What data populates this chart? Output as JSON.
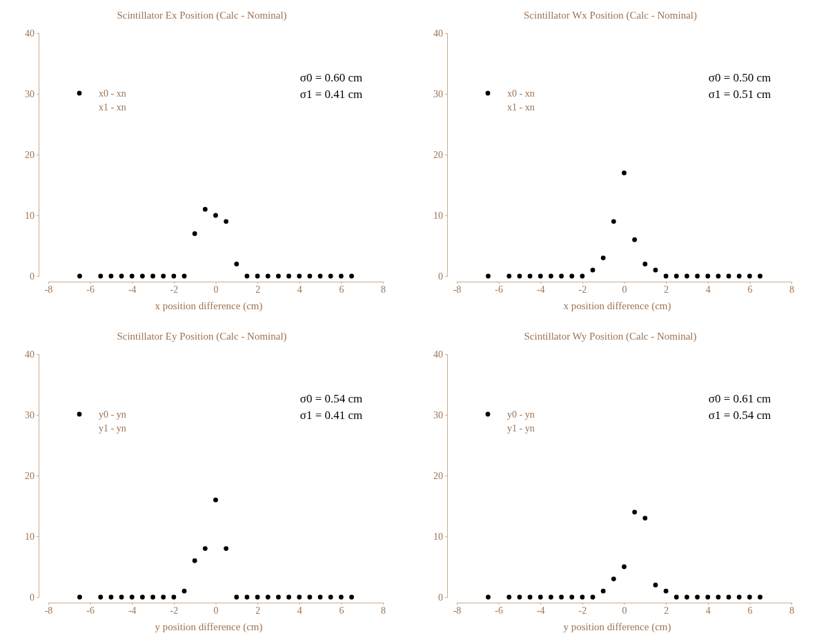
{
  "chart_data": [
    {
      "type": "scatter",
      "title": "Scintillator Ex Position (Calc - Nominal)",
      "xlabel": "x position difference (cm)",
      "xlim": [
        -8,
        8
      ],
      "xticks": [
        -8,
        -6,
        -4,
        -2,
        0,
        2,
        4,
        6,
        8
      ],
      "ylim": [
        0,
        40
      ],
      "yticks": [
        0,
        10,
        20,
        30,
        40
      ],
      "legend": "top left",
      "marker": "circle",
      "annotations": [
        "σ0 = 0.60 cm",
        "σ1 = 0.41 cm",
        "x1 - xn"
      ],
      "series": [
        {
          "name": "x0 - xn",
          "color": "#000000",
          "x": [
            -6.5,
            -5.5,
            -5,
            -4.5,
            -4,
            -3.5,
            -3,
            -2.5,
            -2,
            -1.5,
            -1,
            -0.5,
            0,
            0.5,
            1,
            1.5,
            2,
            2.5,
            3,
            3.5,
            4,
            4.5,
            5,
            5.5,
            6,
            6.5
          ],
          "values": [
            0,
            0,
            0,
            0,
            0,
            0,
            0,
            0,
            0,
            0,
            7,
            11,
            10,
            9,
            2,
            0,
            0,
            0,
            0,
            0,
            0,
            0,
            0,
            0,
            0,
            0
          ]
        }
      ]
    },
    {
      "type": "scatter",
      "title": "Scintillator Wx Position (Calc - Nominal)",
      "xlabel": "x position difference (cm)",
      "xlim": [
        -8,
        8
      ],
      "xticks": [
        -8,
        -6,
        -4,
        -2,
        0,
        2,
        4,
        6,
        8
      ],
      "ylim": [
        0,
        40
      ],
      "yticks": [
        0,
        10,
        20,
        30,
        40
      ],
      "legend": "top left",
      "marker": "circle",
      "annotations": [
        "σ0 = 0.50 cm",
        "σ1 = 0.51 cm",
        "x1 - xn"
      ],
      "series": [
        {
          "name": "x0 - xn",
          "color": "#000000",
          "x": [
            -6.5,
            -5.5,
            -5,
            -4.5,
            -4,
            -3.5,
            -3,
            -2.5,
            -2,
            -1.5,
            -1,
            -0.5,
            0,
            0.5,
            1,
            1.5,
            2,
            2.5,
            3,
            3.5,
            4,
            4.5,
            5,
            5.5,
            6,
            6.5
          ],
          "values": [
            0,
            0,
            0,
            0,
            0,
            0,
            0,
            0,
            0,
            1,
            3,
            9,
            17,
            6,
            2,
            1,
            0,
            0,
            0,
            0,
            0,
            0,
            0,
            0,
            0,
            0
          ]
        }
      ]
    },
    {
      "type": "scatter",
      "title": "Scintillator Ey Position (Calc - Nominal)",
      "xlabel": "y position difference (cm)",
      "xlim": [
        -8,
        8
      ],
      "xticks": [
        -8,
        -6,
        -4,
        -2,
        0,
        2,
        4,
        6,
        8
      ],
      "ylim": [
        0,
        40
      ],
      "yticks": [
        0,
        10,
        20,
        30,
        40
      ],
      "legend": "top left",
      "marker": "circle",
      "annotations": [
        "σ0 = 0.54 cm",
        "σ1 = 0.41 cm",
        "y1 - yn"
      ],
      "series": [
        {
          "name": "y0 - yn",
          "color": "#000000",
          "x": [
            -6.5,
            -5.5,
            -5,
            -4.5,
            -4,
            -3.5,
            -3,
            -2.5,
            -2,
            -1.5,
            -1,
            -0.5,
            0,
            0.5,
            1,
            1.5,
            2,
            2.5,
            3,
            3.5,
            4,
            4.5,
            5,
            5.5,
            6,
            6.5
          ],
          "values": [
            0,
            0,
            0,
            0,
            0,
            0,
            0,
            0,
            0,
            1,
            6,
            8,
            16,
            8,
            0,
            0,
            0,
            0,
            0,
            0,
            0,
            0,
            0,
            0,
            0,
            0
          ]
        }
      ]
    },
    {
      "type": "scatter",
      "title": "Scintillator Wy Position (Calc - Nominal)",
      "xlabel": "y position difference (cm)",
      "xlim": [
        -8,
        8
      ],
      "xticks": [
        -8,
        -6,
        -4,
        -2,
        0,
        2,
        4,
        6,
        8
      ],
      "ylim": [
        0,
        40
      ],
      "yticks": [
        0,
        10,
        20,
        30,
        40
      ],
      "legend": "top left",
      "marker": "circle",
      "annotations": [
        "σ0 = 0.61 cm",
        "σ1 = 0.54 cm",
        "y1 - yn"
      ],
      "series": [
        {
          "name": "y0 - yn",
          "color": "#000000",
          "x": [
            -6.5,
            -5.5,
            -5,
            -4.5,
            -4,
            -3.5,
            -3,
            -2.5,
            -2,
            -1.5,
            -1,
            -0.5,
            0,
            0.5,
            1,
            1.5,
            2,
            2.5,
            3,
            3.5,
            4,
            4.5,
            5,
            5.5,
            6,
            6.5
          ],
          "values": [
            0,
            0,
            0,
            0,
            0,
            0,
            0,
            0,
            0,
            0,
            1,
            3,
            5,
            14,
            13,
            2,
            1,
            0,
            0,
            0,
            0,
            0,
            0,
            0,
            0,
            0
          ]
        }
      ]
    }
  ]
}
